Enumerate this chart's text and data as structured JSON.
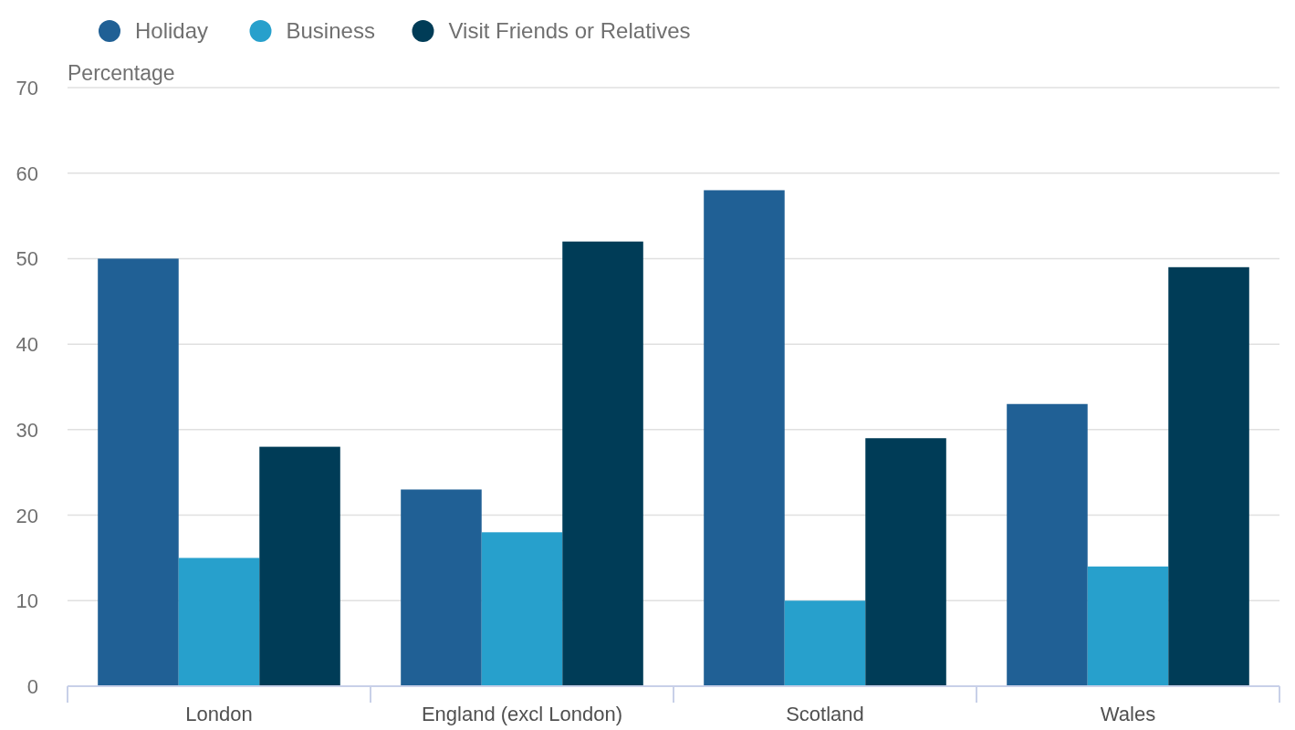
{
  "chart_data": {
    "type": "bar",
    "ylabel": "Percentage",
    "categories": [
      "London",
      "England (excl London)",
      "Scotland",
      "Wales"
    ],
    "series": [
      {
        "name": "Holiday",
        "color": "#206095",
        "values": [
          50,
          23,
          58,
          33
        ]
      },
      {
        "name": "Business",
        "color": "#27a0cc",
        "values": [
          15,
          18,
          10,
          14
        ]
      },
      {
        "name": "Visit Friends or Relatives",
        "color": "#003c57",
        "values": [
          28,
          52,
          29,
          49
        ]
      }
    ],
    "ylim": [
      0,
      70
    ],
    "yticks": [
      0,
      10,
      20,
      30,
      40,
      50,
      60,
      70
    ],
    "grid": "y",
    "legend": "top left"
  }
}
